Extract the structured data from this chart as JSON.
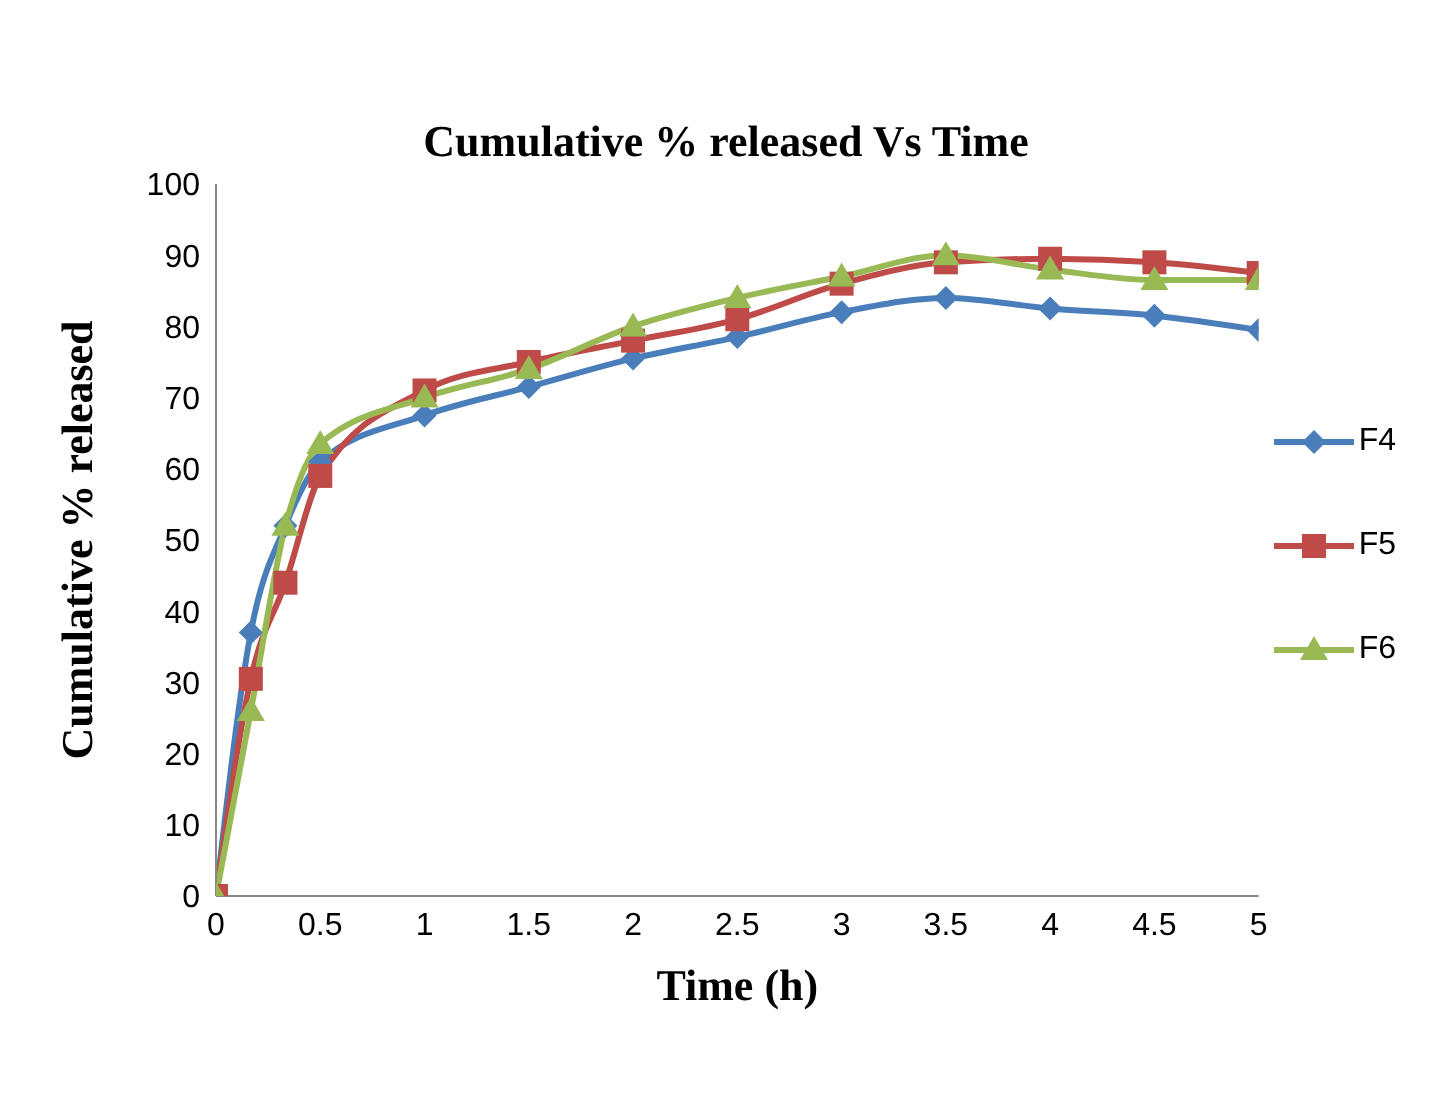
{
  "chart_data": {
    "type": "line",
    "title": "Cumulative % released Vs Time",
    "xlabel": "Time (h)",
    "ylabel": "Cumulative % released",
    "x": [
      0,
      0.167,
      0.333,
      0.5,
      1,
      1.5,
      2,
      2.5,
      3,
      3.5,
      4,
      4.5,
      5
    ],
    "series": [
      {
        "name": "F4",
        "color": "#4a7ebb",
        "marker": "diamond",
        "values": [
          0,
          37,
          52,
          61,
          67.5,
          71.5,
          75.5,
          78.5,
          82,
          84,
          82.5,
          81.5,
          79.5
        ]
      },
      {
        "name": "F5",
        "color": "#be4b48",
        "marker": "square",
        "values": [
          0,
          30.5,
          44,
          59,
          71,
          75,
          78,
          81,
          86,
          89,
          89.5,
          89,
          87.5
        ]
      },
      {
        "name": "F6",
        "color": "#98b954",
        "marker": "triangle",
        "values": [
          0,
          26,
          52,
          63.5,
          70,
          74,
          80,
          84,
          87,
          90,
          88,
          86.5,
          86.5
        ]
      }
    ],
    "xlim": [
      0,
      5
    ],
    "xticks": [
      0,
      0.5,
      1,
      1.5,
      2,
      2.5,
      3,
      3.5,
      4,
      4.5,
      5
    ],
    "ylim": [
      0,
      100
    ],
    "yticks": [
      0,
      10,
      20,
      30,
      40,
      50,
      60,
      70,
      80,
      90,
      100
    ],
    "grid": false,
    "legend": "right",
    "line_style": "solid"
  }
}
